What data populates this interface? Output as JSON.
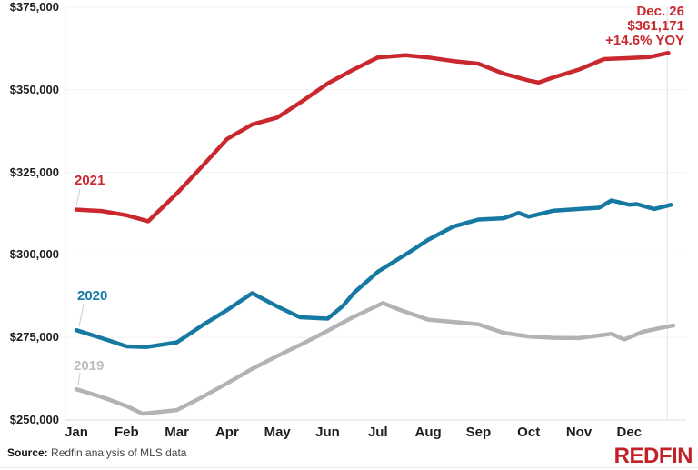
{
  "annotation": {
    "date": "Dec. 26",
    "price": "$361,171",
    "yoy": "+14.6% YOY"
  },
  "footer": {
    "source_label": "Source:",
    "source_text": "Redfin analysis of MLS data",
    "logo_text": "REDFIN"
  },
  "colors": {
    "red": "#c9282e",
    "blue": "#1579a2",
    "gray": "#b3b3b3",
    "gray_label": "#bdbdbd",
    "grid": "#f2f2f2",
    "axis_line": "#dcdcdc",
    "ref_line": "#e2e2e2",
    "leader_line": "#cccccc",
    "text": "#1d1d1f",
    "logo_red": "#c32128"
  },
  "chart_data": {
    "type": "line",
    "title": "",
    "xlabel": "",
    "ylabel": "",
    "x_unit": "month index (0 = Jan, 11 = Dec)",
    "ylim": [
      250000,
      375000
    ],
    "grid": "horizontal",
    "x_ticks": [
      "Jan",
      "Feb",
      "Mar",
      "Apr",
      "May",
      "Jun",
      "Jul",
      "Aug",
      "Sep",
      "Oct",
      "Nov",
      "Dec"
    ],
    "y_ticks": [
      {
        "label": "$375,000",
        "value": 375000
      },
      {
        "label": "$350,000",
        "value": 350000
      },
      {
        "label": "$325,000",
        "value": 325000
      },
      {
        "label": "$300,000",
        "value": 300000
      },
      {
        "label": "$275,000",
        "value": 275000
      },
      {
        "label": "$250,000",
        "value": 250000
      }
    ],
    "end_reference_line_x": 11.76,
    "series": [
      {
        "name": "2019",
        "color": "#b3b3b3",
        "label_color": "#bdbdbd",
        "points": [
          [
            0,
            259300
          ],
          [
            0.5,
            257000
          ],
          [
            1,
            254200
          ],
          [
            1.32,
            251900
          ],
          [
            2,
            253000
          ],
          [
            2.5,
            256900
          ],
          [
            3,
            261100
          ],
          [
            3.5,
            265500
          ],
          [
            4,
            269400
          ],
          [
            4.5,
            273100
          ],
          [
            5,
            277000
          ],
          [
            5.5,
            281100
          ],
          [
            6,
            284700
          ],
          [
            6.1,
            285400
          ],
          [
            6.45,
            283300
          ],
          [
            7,
            280400
          ],
          [
            7.5,
            279700
          ],
          [
            8,
            279000
          ],
          [
            8.5,
            276400
          ],
          [
            9,
            275300
          ],
          [
            9.5,
            274900
          ],
          [
            10,
            274800
          ],
          [
            10.65,
            276100
          ],
          [
            10.9,
            274400
          ],
          [
            11,
            275000
          ],
          [
            11.27,
            276700
          ],
          [
            11.63,
            277900
          ],
          [
            11.88,
            278600
          ]
        ]
      },
      {
        "name": "2020",
        "color": "#1579a2",
        "label_color": "#1579a2",
        "points": [
          [
            0,
            277200
          ],
          [
            0.5,
            274800
          ],
          [
            1,
            272300
          ],
          [
            1.4,
            272100
          ],
          [
            2,
            273500
          ],
          [
            2.5,
            278600
          ],
          [
            3,
            283300
          ],
          [
            3.5,
            288400
          ],
          [
            4,
            284400
          ],
          [
            4.45,
            281100
          ],
          [
            5,
            280700
          ],
          [
            5.3,
            284500
          ],
          [
            5.53,
            288600
          ],
          [
            6,
            294900
          ],
          [
            6.6,
            300600
          ],
          [
            7,
            304600
          ],
          [
            7.5,
            308600
          ],
          [
            8,
            310700
          ],
          [
            8.5,
            311100
          ],
          [
            8.8,
            312700
          ],
          [
            9,
            311600
          ],
          [
            9.5,
            313400
          ],
          [
            10,
            313900
          ],
          [
            10.4,
            314300
          ],
          [
            10.65,
            316500
          ],
          [
            11,
            315200
          ],
          [
            11.15,
            315400
          ],
          [
            11.5,
            313900
          ],
          [
            11.83,
            315158
          ]
        ]
      },
      {
        "name": "2021",
        "color": "#c9282e",
        "label_color": "#c9282e",
        "points": [
          [
            0,
            313700
          ],
          [
            0.5,
            313300
          ],
          [
            1,
            312000
          ],
          [
            1.43,
            310200
          ],
          [
            2,
            318600
          ],
          [
            2.5,
            326800
          ],
          [
            3,
            335100
          ],
          [
            3.5,
            339500
          ],
          [
            4,
            341600
          ],
          [
            4.5,
            346600
          ],
          [
            5,
            351900
          ],
          [
            5.5,
            356000
          ],
          [
            6,
            359800
          ],
          [
            6.55,
            360500
          ],
          [
            7,
            359800
          ],
          [
            7.5,
            358700
          ],
          [
            8,
            357900
          ],
          [
            8.5,
            354900
          ],
          [
            9,
            352800
          ],
          [
            9.2,
            352200
          ],
          [
            9.5,
            353800
          ],
          [
            10,
            356100
          ],
          [
            10.5,
            359300
          ],
          [
            11,
            359600
          ],
          [
            11.4,
            359900
          ],
          [
            11.78,
            361171
          ]
        ]
      }
    ]
  }
}
